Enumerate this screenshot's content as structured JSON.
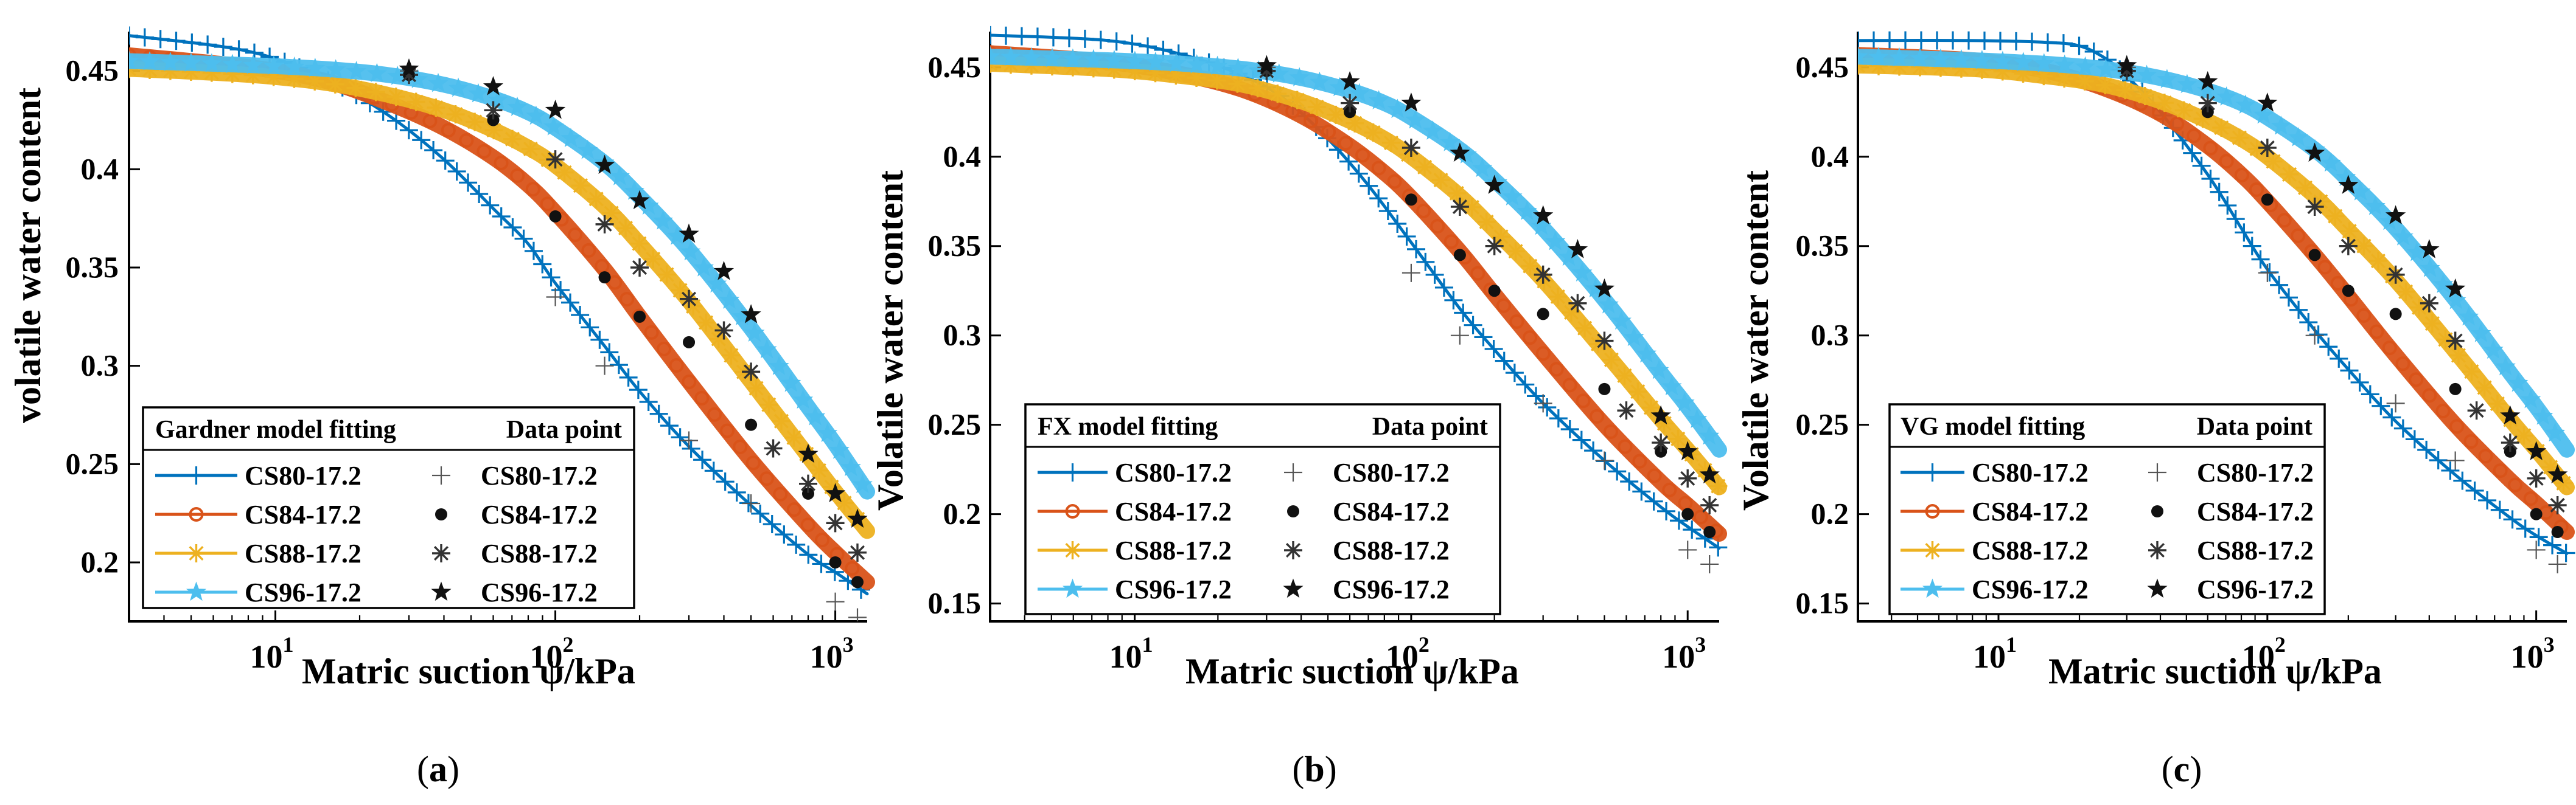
{
  "chart_data": [
    {
      "type": "line",
      "panel_label": "(a)",
      "xlabel": "Matric suction ψ/kPa",
      "ylabel": "volatile water content",
      "xscale": "log",
      "xlim": [
        3,
        1300
      ],
      "ylim": [
        0.17,
        0.47
      ],
      "yticks": [
        0.2,
        0.25,
        0.3,
        0.35,
        0.4,
        0.45
      ],
      "ytick_labels": [
        "0.2",
        "0.25",
        "0.3",
        "0.35",
        "0.4",
        "0.45"
      ],
      "xticks": [
        10,
        100,
        1000
      ],
      "xtick_labels": [
        {
          "base": "10",
          "exp": "1"
        },
        {
          "base": "10",
          "exp": "2"
        },
        {
          "base": "10",
          "exp": "3"
        }
      ],
      "legend": {
        "placement": "bottom-left",
        "fit_header": "Gardner model fitting",
        "data_header": "Data point"
      },
      "series": [
        {
          "name": "CS80-17.2",
          "color": "#0072BD",
          "marker": "+",
          "fit_x": [
            3,
            8,
            15,
            25,
            40,
            60,
            80,
            100,
            150,
            200,
            300,
            500,
            800,
            1000,
            1300
          ],
          "fit_y": [
            0.468,
            0.46,
            0.446,
            0.428,
            0.405,
            0.38,
            0.362,
            0.342,
            0.31,
            0.287,
            0.259,
            0.229,
            0.204,
            0.195,
            0.184
          ],
          "data_x": [
            30,
            100,
            150,
            300,
            500,
            1000,
            1200
          ],
          "data_y": [
            0.45,
            0.335,
            0.3,
            0.262,
            0.23,
            0.18,
            0.172
          ]
        },
        {
          "name": "CS84-17.2",
          "color": "#D95319",
          "marker": "o",
          "fit_x": [
            3,
            8,
            15,
            25,
            40,
            60,
            80,
            100,
            150,
            200,
            300,
            500,
            800,
            1000,
            1300
          ],
          "fit_y": [
            0.458,
            0.452,
            0.445,
            0.434,
            0.421,
            0.406,
            0.392,
            0.378,
            0.349,
            0.325,
            0.292,
            0.252,
            0.219,
            0.205,
            0.19
          ],
          "data_x": [
            30,
            60,
            100,
            150,
            200,
            300,
            500,
            800,
            1000,
            1200
          ],
          "data_y": [
            0.448,
            0.425,
            0.376,
            0.345,
            0.325,
            0.312,
            0.27,
            0.235,
            0.2,
            0.19
          ]
        },
        {
          "name": "CS88-17.2",
          "color": "#EDB120",
          "marker": "*",
          "fit_x": [
            3,
            8,
            15,
            25,
            40,
            60,
            80,
            100,
            150,
            200,
            300,
            500,
            800,
            1000,
            1300
          ],
          "fit_y": [
            0.451,
            0.448,
            0.444,
            0.438,
            0.43,
            0.42,
            0.411,
            0.402,
            0.381,
            0.362,
            0.333,
            0.292,
            0.254,
            0.236,
            0.216
          ],
          "data_x": [
            30,
            60,
            100,
            150,
            200,
            300,
            400,
            500,
            600,
            800,
            1000,
            1200
          ],
          "data_y": [
            0.448,
            0.43,
            0.405,
            0.372,
            0.35,
            0.334,
            0.318,
            0.297,
            0.258,
            0.24,
            0.22,
            0.205
          ]
        },
        {
          "name": "CS96-17.2",
          "color": "#4DBEEE",
          "marker": "pentagram-filled",
          "fit_x": [
            3,
            8,
            15,
            25,
            40,
            60,
            80,
            100,
            150,
            200,
            300,
            500,
            800,
            1000,
            1300
          ],
          "fit_y": [
            0.455,
            0.453,
            0.451,
            0.448,
            0.443,
            0.436,
            0.429,
            0.421,
            0.403,
            0.386,
            0.359,
            0.319,
            0.279,
            0.26,
            0.236
          ],
          "data_x": [
            30,
            60,
            100,
            150,
            200,
            300,
            400,
            500,
            800,
            1000,
            1200
          ],
          "data_y": [
            0.451,
            0.442,
            0.43,
            0.402,
            0.384,
            0.367,
            0.348,
            0.326,
            0.255,
            0.235,
            0.222
          ]
        }
      ]
    },
    {
      "type": "line",
      "panel_label": "(b)",
      "xlabel": "Matric suction ψ/kPa",
      "ylabel": "Volatile water content",
      "xscale": "log",
      "xlim": [
        3,
        1300
      ],
      "ylim": [
        0.14,
        0.47
      ],
      "yticks": [
        0.15,
        0.2,
        0.25,
        0.3,
        0.35,
        0.4,
        0.45
      ],
      "ytick_labels": [
        "0.15",
        "0.2",
        "0.25",
        "0.3",
        "0.35",
        "0.4",
        "0.45"
      ],
      "xticks": [
        10,
        100,
        1000
      ],
      "xtick_labels": [
        {
          "base": "10",
          "exp": "1"
        },
        {
          "base": "10",
          "exp": "2"
        },
        {
          "base": "10",
          "exp": "3"
        }
      ],
      "legend": {
        "placement": "bottom-left",
        "fit_header": "FX model fitting",
        "data_header": "Data point"
      },
      "series": [
        {
          "name": "CS80-17.2",
          "color": "#0072BD",
          "marker": "+",
          "fit_x": [
            3,
            8,
            15,
            25,
            35,
            50,
            70,
            100,
            150,
            200,
            300,
            500,
            800,
            1000,
            1300
          ],
          "fit_y": [
            0.468,
            0.465,
            0.457,
            0.445,
            0.432,
            0.41,
            0.384,
            0.352,
            0.315,
            0.292,
            0.262,
            0.23,
            0.204,
            0.193,
            0.181
          ],
          "data_x": [
            30,
            100,
            150,
            300,
            500,
            1000,
            1200
          ],
          "data_y": [
            0.45,
            0.335,
            0.3,
            0.262,
            0.23,
            0.18,
            0.172
          ]
        },
        {
          "name": "CS84-17.2",
          "color": "#D95319",
          "marker": "o",
          "fit_x": [
            3,
            8,
            15,
            25,
            40,
            60,
            80,
            100,
            150,
            200,
            300,
            500,
            800,
            1000,
            1300
          ],
          "fit_y": [
            0.458,
            0.453,
            0.446,
            0.437,
            0.423,
            0.406,
            0.391,
            0.377,
            0.347,
            0.323,
            0.29,
            0.25,
            0.218,
            0.205,
            0.189
          ],
          "data_x": [
            30,
            60,
            100,
            150,
            200,
            300,
            500,
            800,
            1000,
            1200
          ],
          "data_y": [
            0.448,
            0.425,
            0.376,
            0.345,
            0.325,
            0.312,
            0.27,
            0.235,
            0.2,
            0.19
          ]
        },
        {
          "name": "CS88-17.2",
          "color": "#EDB120",
          "marker": "*",
          "fit_x": [
            3,
            8,
            15,
            25,
            40,
            60,
            80,
            100,
            150,
            200,
            300,
            500,
            800,
            1000,
            1300
          ],
          "fit_y": [
            0.452,
            0.449,
            0.445,
            0.44,
            0.431,
            0.42,
            0.41,
            0.4,
            0.378,
            0.359,
            0.331,
            0.291,
            0.253,
            0.236,
            0.215
          ],
          "data_x": [
            30,
            60,
            100,
            150,
            200,
            300,
            400,
            500,
            600,
            800,
            1000,
            1200
          ],
          "data_y": [
            0.448,
            0.43,
            0.405,
            0.372,
            0.35,
            0.334,
            0.318,
            0.297,
            0.258,
            0.24,
            0.22,
            0.205
          ]
        },
        {
          "name": "CS96-17.2",
          "color": "#4DBEEE",
          "marker": "pentagram-filled",
          "fit_x": [
            3,
            8,
            15,
            25,
            40,
            60,
            80,
            100,
            150,
            200,
            300,
            500,
            800,
            1000,
            1300
          ],
          "fit_y": [
            0.456,
            0.454,
            0.452,
            0.449,
            0.444,
            0.437,
            0.43,
            0.422,
            0.404,
            0.387,
            0.36,
            0.32,
            0.279,
            0.26,
            0.236
          ],
          "data_x": [
            30,
            60,
            100,
            150,
            200,
            300,
            400,
            500,
            800,
            1000,
            1200
          ],
          "data_y": [
            0.451,
            0.442,
            0.43,
            0.402,
            0.384,
            0.367,
            0.348,
            0.326,
            0.255,
            0.235,
            0.222
          ]
        }
      ]
    },
    {
      "type": "line",
      "panel_label": "(c)",
      "xlabel": "Matric suction ψ/kPa",
      "ylabel": "Volatile water content",
      "xscale": "log",
      "xlim": [
        3,
        1300
      ],
      "ylim": [
        0.14,
        0.47
      ],
      "yticks": [
        0.15,
        0.2,
        0.25,
        0.3,
        0.35,
        0.4,
        0.45
      ],
      "ytick_labels": [
        "0.15",
        "0.2",
        "0.25",
        "0.3",
        "0.35",
        "0.4",
        "0.45"
      ],
      "xticks": [
        10,
        100,
        1000
      ],
      "xtick_labels": [
        {
          "base": "10",
          "exp": "1"
        },
        {
          "base": "10",
          "exp": "2"
        },
        {
          "base": "10",
          "exp": "3"
        }
      ],
      "legend": {
        "placement": "bottom-left",
        "fit_header": "VG model fitting",
        "data_header": "Data point"
      },
      "series": [
        {
          "name": "CS80-17.2",
          "color": "#0072BD",
          "marker": "+",
          "fit_x": [
            3,
            8,
            15,
            20,
            25,
            30,
            40,
            60,
            80,
            100,
            150,
            200,
            300,
            500,
            800,
            1000,
            1300
          ],
          "fit_y": [
            0.465,
            0.465,
            0.464,
            0.462,
            0.455,
            0.445,
            0.425,
            0.39,
            0.36,
            0.337,
            0.303,
            0.281,
            0.252,
            0.222,
            0.198,
            0.188,
            0.178
          ],
          "data_x": [
            30,
            100,
            150,
            300,
            500,
            1000,
            1200
          ],
          "data_y": [
            0.45,
            0.335,
            0.3,
            0.262,
            0.23,
            0.18,
            0.172
          ]
        },
        {
          "name": "CS84-17.2",
          "color": "#D95319",
          "marker": "o",
          "fit_x": [
            3,
            8,
            15,
            25,
            40,
            60,
            80,
            100,
            150,
            200,
            300,
            500,
            800,
            1000,
            1300
          ],
          "fit_y": [
            0.457,
            0.454,
            0.448,
            0.438,
            0.424,
            0.406,
            0.39,
            0.375,
            0.345,
            0.322,
            0.289,
            0.25,
            0.219,
            0.206,
            0.19
          ],
          "data_x": [
            30,
            60,
            100,
            150,
            200,
            300,
            500,
            800,
            1000,
            1200
          ],
          "data_y": [
            0.448,
            0.425,
            0.376,
            0.345,
            0.325,
            0.312,
            0.27,
            0.235,
            0.2,
            0.19
          ]
        },
        {
          "name": "CS88-17.2",
          "color": "#EDB120",
          "marker": "*",
          "fit_x": [
            3,
            8,
            15,
            25,
            40,
            60,
            80,
            100,
            150,
            200,
            300,
            500,
            800,
            1000,
            1300
          ],
          "fit_y": [
            0.451,
            0.449,
            0.445,
            0.44,
            0.431,
            0.42,
            0.41,
            0.4,
            0.378,
            0.359,
            0.331,
            0.291,
            0.253,
            0.236,
            0.215
          ],
          "data_x": [
            30,
            60,
            100,
            150,
            200,
            300,
            400,
            500,
            600,
            800,
            1000,
            1200
          ],
          "data_y": [
            0.448,
            0.43,
            0.405,
            0.372,
            0.35,
            0.334,
            0.318,
            0.297,
            0.258,
            0.24,
            0.22,
            0.205
          ]
        },
        {
          "name": "CS96-17.2",
          "color": "#4DBEEE",
          "marker": "pentagram-filled",
          "fit_x": [
            3,
            8,
            15,
            25,
            40,
            60,
            80,
            100,
            150,
            200,
            300,
            500,
            800,
            1000,
            1300
          ],
          "fit_y": [
            0.456,
            0.454,
            0.452,
            0.449,
            0.444,
            0.437,
            0.43,
            0.422,
            0.404,
            0.387,
            0.36,
            0.32,
            0.279,
            0.26,
            0.236
          ],
          "data_x": [
            30,
            60,
            100,
            150,
            200,
            300,
            400,
            500,
            800,
            1000,
            1200
          ],
          "data_y": [
            0.451,
            0.442,
            0.43,
            0.402,
            0.384,
            0.367,
            0.348,
            0.326,
            0.255,
            0.235,
            0.222
          ]
        }
      ]
    }
  ]
}
